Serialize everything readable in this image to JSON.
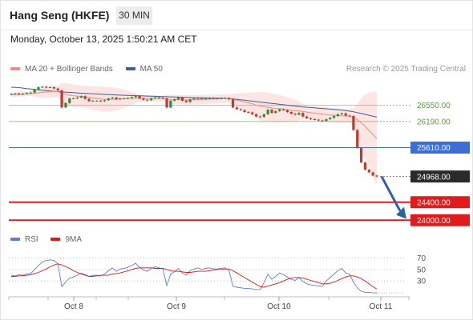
{
  "header": {
    "title": "Hang Seng (HKFE)",
    "timeframe": "30 MIN",
    "timestamp": "Monday, October 13, 2025 1:50:21 AM CET"
  },
  "legend": {
    "ma20_label": "MA 20 + Bollinger Bands",
    "ma50_label": "MA 50",
    "rsi_label": "RSI",
    "rsi_ma_label": "9MA"
  },
  "copyright": "Research © 2025 Trading Central",
  "colors": {
    "ma20": "#f08a8a",
    "ma50": "#3f5f95",
    "band_fill": "#fde2e0",
    "candle_up": "#2e8b3a",
    "candle_down": "#c0392b",
    "resistance": "#8cc06c",
    "pivot": "#3b6fd4",
    "support": "#e11b1b",
    "rsi": "#5b7fd6",
    "rsi_ma": "#e01616",
    "arrow": "#2f5fa7"
  },
  "chart_data": [
    {
      "type": "candlestick",
      "x_tick_labels": [
        "Oct 8",
        "Oct 9",
        "Oct 10",
        "Oct 11"
      ],
      "ylim": [
        23880,
        27180
      ],
      "levels": [
        {
          "label": "26550.00",
          "value": 26550,
          "kind": "resistance"
        },
        {
          "label": "26190.00",
          "value": 26190,
          "kind": "resistance"
        },
        {
          "label": "25610.00",
          "value": 25610,
          "kind": "pivot"
        },
        {
          "label": "24968.00",
          "value": 24968,
          "kind": "last"
        },
        {
          "label": "24400.00",
          "value": 24400,
          "kind": "support"
        },
        {
          "label": "24000.00",
          "value": 24000,
          "kind": "support"
        }
      ],
      "close": [
        26800,
        26810,
        26790,
        26805,
        26820,
        26830,
        26900,
        26950,
        26960,
        26940,
        26950,
        26920,
        26880,
        26500,
        26600,
        26700,
        26700,
        26720,
        26750,
        26690,
        26640,
        26650,
        26650,
        26640,
        26660,
        26700,
        26720,
        26680,
        26700,
        26700,
        26710,
        26730,
        26760,
        26700,
        26670,
        26660,
        26700,
        26720,
        26710,
        26700,
        26500,
        26650,
        26680,
        26720,
        26650,
        26620,
        26680,
        26700,
        26710,
        26690,
        26700,
        26710,
        26700,
        26700,
        26705,
        26710,
        26680,
        26500,
        26460,
        26440,
        26400,
        26390,
        26350,
        26300,
        26290,
        26350,
        26450,
        26380,
        26420,
        26460,
        26440,
        26400,
        26360,
        26340,
        26380,
        26300,
        26260,
        26240,
        26230,
        26210,
        26200,
        26240,
        26270,
        26310,
        26350,
        26370,
        26320,
        26310,
        26000,
        25600,
        25280,
        25120,
        25060,
        24990,
        24968
      ],
      "ma20": [
        26780,
        26785,
        26790,
        26795,
        26800,
        26808,
        26815,
        26825,
        26835,
        26842,
        26850,
        26855,
        26850,
        26820,
        26790,
        26770,
        26760,
        26750,
        26745,
        26735,
        26725,
        26712,
        26700,
        26690,
        26680,
        26680,
        26682,
        26685,
        26690,
        26692,
        26695,
        26700,
        26706,
        26708,
        26706,
        26702,
        26700,
        26702,
        26705,
        26706,
        26690,
        26680,
        26676,
        26678,
        26672,
        26668,
        26668,
        26670,
        26674,
        26676,
        26679,
        26683,
        26686,
        26690,
        26694,
        26697,
        26695,
        26678,
        26658,
        26640,
        26622,
        26602,
        26580,
        26556,
        26532,
        26515,
        26503,
        26490,
        26480,
        26472,
        26462,
        26450,
        26440,
        26430,
        26422,
        26410,
        26397,
        26385,
        26374,
        26363,
        26352,
        26342,
        26333,
        26326,
        26320,
        26315,
        26310,
        26306,
        26282,
        26230,
        26160,
        26080,
        25990,
        25900,
        25810
      ],
      "ma50": [
        26950,
        26945,
        26940,
        26930,
        26920,
        26910,
        26900,
        26890,
        26880,
        26872,
        26865,
        26858,
        26852,
        26846,
        26840,
        26834,
        26828,
        26822,
        26816,
        26812,
        26808,
        26803,
        26798,
        26794,
        26790,
        26786,
        26782,
        26778,
        26774,
        26771,
        26768,
        26765,
        26762,
        26759,
        26756,
        26753,
        26750,
        26747,
        26744,
        26741,
        26738,
        26735,
        26732,
        26729,
        26726,
        26723,
        26720,
        26718,
        26716,
        26714,
        26712,
        26710,
        26708,
        26706,
        26704,
        26702,
        26700,
        26690,
        26680,
        26670,
        26660,
        26650,
        26640,
        26630,
        26620,
        26610,
        26600,
        26590,
        26580,
        26570,
        26560,
        26550,
        26540,
        26530,
        26520,
        26512,
        26505,
        26498,
        26491,
        26484,
        26477,
        26470,
        26463,
        26456,
        26449,
        26442,
        26430,
        26418,
        26404,
        26386,
        26366,
        26346,
        26326,
        26306,
        26286
      ],
      "rsi": [
        40,
        39,
        41,
        40,
        42,
        43,
        50,
        57,
        63,
        66,
        67,
        66,
        60,
        20,
        28,
        35,
        37,
        40,
        44,
        41,
        38,
        40,
        40,
        39,
        42,
        48,
        53,
        47,
        51,
        52,
        54,
        57,
        61,
        54,
        49,
        47,
        52,
        55,
        53,
        51,
        22,
        42,
        46,
        52,
        44,
        40,
        48,
        51,
        53,
        50,
        52,
        53,
        51,
        51,
        52,
        53,
        48,
        21,
        19,
        18,
        17,
        17,
        16,
        15,
        15,
        27,
        42,
        33,
        38,
        44,
        41,
        37,
        33,
        31,
        36,
        29,
        25,
        23,
        22,
        21,
        21,
        30,
        36,
        42,
        48,
        52,
        44,
        42,
        28,
        18,
        12,
        10,
        10,
        9,
        9
      ],
      "rsi_ma": [
        38,
        38,
        39,
        39,
        40,
        41,
        43,
        45,
        48,
        51,
        55,
        58,
        60,
        58,
        55,
        52,
        48,
        45,
        42,
        40,
        38,
        38,
        39,
        40,
        40,
        40,
        42,
        43,
        44,
        46,
        48,
        50,
        52,
        53,
        53,
        53,
        53,
        52,
        52,
        52,
        50,
        48,
        47,
        47,
        46,
        45,
        45,
        46,
        47,
        47,
        47,
        48,
        49,
        50,
        50,
        51,
        51,
        48,
        44,
        40,
        36,
        32,
        28,
        24,
        20,
        19,
        21,
        23,
        25,
        27,
        30,
        33,
        35,
        36,
        36,
        35,
        33,
        31,
        29,
        27,
        25,
        25,
        26,
        28,
        31,
        34,
        37,
        39,
        39,
        37,
        34,
        30,
        25,
        20,
        16
      ]
    }
  ],
  "rsi_axis": {
    "labels": [
      "70",
      "50",
      "30"
    ],
    "values": [
      70,
      50,
      30
    ]
  }
}
